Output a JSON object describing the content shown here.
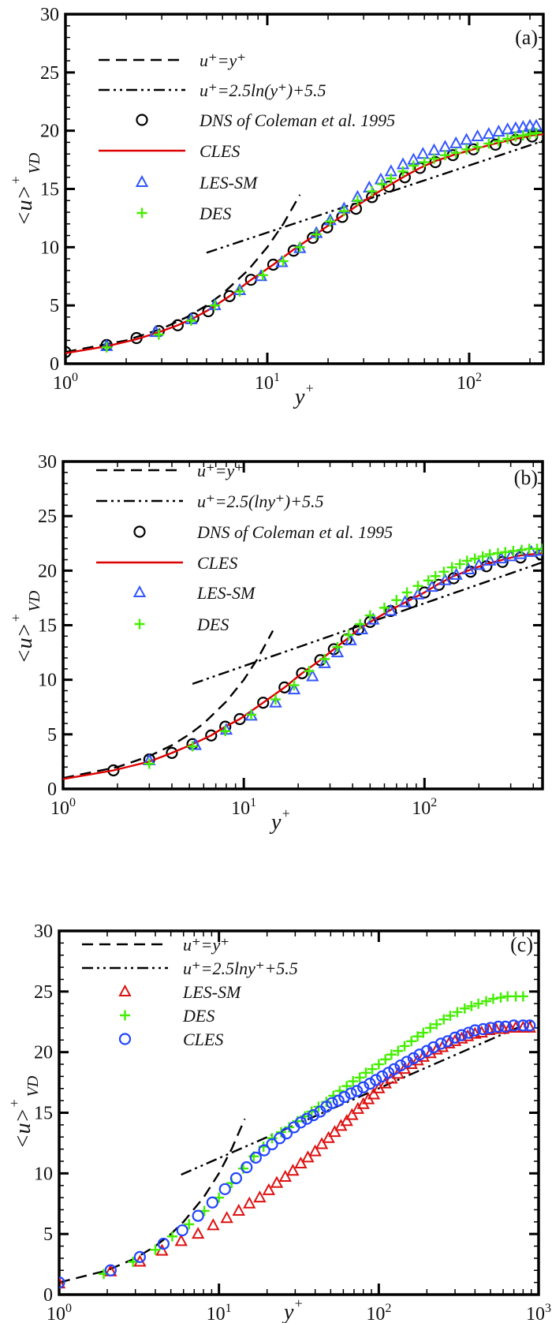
{
  "chart_data": [
    {
      "type": "line",
      "panel_label": "(a)",
      "xlabel": {
        "base": "y",
        "sup": "+"
      },
      "ylabel": {
        "base": "<u>",
        "sup": "+",
        "sub": "VD"
      },
      "xscale": "log",
      "xlim": [
        1,
        233
      ],
      "ylim": [
        0,
        30
      ],
      "x_tick_labels": [
        {
          "base": "10",
          "exp": "0",
          "value": 1
        },
        {
          "base": "10",
          "exp": "1",
          "value": 10
        },
        {
          "base": "10",
          "exp": "2",
          "value": 100
        }
      ],
      "y_ticks": [
        0,
        5,
        10,
        15,
        20,
        25,
        30
      ],
      "legend_position": "top-left",
      "series": [
        {
          "name": "u⁺=y⁺",
          "style": "dashed",
          "color": "#000000",
          "x": [
            1,
            2,
            3,
            4,
            5,
            6,
            8,
            10,
            12,
            14.5
          ],
          "y": [
            1,
            2,
            3,
            4,
            5,
            6,
            8,
            10,
            12,
            14.5
          ]
        },
        {
          "name": "u⁺=2.5ln(y⁺)+5.5",
          "style": "dashdot",
          "color": "#000000",
          "x": [
            5,
            233
          ],
          "y": [
            9.52,
            19.13
          ]
        },
        {
          "name": "DNS of Coleman et al. 1995",
          "style": "circle",
          "color": "#000000",
          "x": [
            1.0,
            1.6,
            2.25,
            2.9,
            3.6,
            4.3,
            5.1,
            6.5,
            8.3,
            10.7,
            13.5,
            16.8,
            19.8,
            23.5,
            27.5,
            33,
            40,
            48,
            57,
            68,
            83,
            105,
            135,
            170,
            205
          ],
          "y": [
            1.0,
            1.6,
            2.2,
            2.8,
            3.3,
            3.9,
            4.5,
            5.8,
            7.2,
            8.5,
            9.7,
            10.8,
            11.7,
            12.6,
            13.3,
            14.3,
            15.2,
            16.0,
            16.8,
            17.3,
            17.9,
            18.4,
            18.8,
            19.2,
            19.5
          ]
        },
        {
          "name": "CLES",
          "style": "solid",
          "color": "#dd0000",
          "x": [
            1.0,
            1.6,
            2.25,
            2.9,
            3.6,
            4.3,
            5.1,
            6.5,
            8.3,
            10.7,
            13.5,
            16.8,
            19.8,
            23.5,
            27.5,
            33,
            40,
            48,
            57,
            68,
            83,
            105,
            135,
            170,
            205,
            233
          ],
          "y": [
            0.9,
            1.5,
            2.1,
            2.7,
            3.3,
            3.9,
            4.6,
            5.8,
            7.2,
            8.5,
            9.8,
            10.9,
            11.8,
            12.7,
            13.5,
            14.4,
            15.3,
            16.1,
            16.8,
            17.4,
            17.9,
            18.4,
            18.9,
            19.3,
            19.6,
            19.7
          ]
        },
        {
          "name": "LES-SM",
          "style": "triangle",
          "color": "#3355ff",
          "x": [
            1.6,
            2.8,
            4.2,
            5.5,
            7.3,
            9.3,
            11.8,
            14.5,
            17.5,
            20.5,
            24,
            28,
            32,
            36.5,
            41,
            47,
            53,
            59,
            67,
            76,
            86,
            97,
            110,
            125,
            140,
            155,
            170,
            185,
            200,
            215
          ],
          "y": [
            1.5,
            2.7,
            3.8,
            5.0,
            6.3,
            7.5,
            8.7,
            9.9,
            11.2,
            12.3,
            13.3,
            14.3,
            15.1,
            15.8,
            16.5,
            17.1,
            17.5,
            18.0,
            18.3,
            18.6,
            18.9,
            19.2,
            19.5,
            19.7,
            19.9,
            20.1,
            20.2,
            20.3,
            20.4,
            20.4
          ]
        },
        {
          "name": "DES",
          "style": "plus",
          "color": "#44ee00",
          "x": [
            1.6,
            2.9,
            4.2,
            5.5,
            7.3,
            9.5,
            12,
            14.5,
            17.5,
            20.5,
            24,
            28,
            33,
            37,
            41,
            47,
            53,
            60,
            67,
            76,
            86,
            97,
            110,
            125,
            140,
            155,
            170,
            185,
            200,
            215
          ],
          "y": [
            1.4,
            2.5,
            3.7,
            5.0,
            6.2,
            7.6,
            8.8,
            10.0,
            11.1,
            12.2,
            13.1,
            14.0,
            14.8,
            15.4,
            15.9,
            16.5,
            17.0,
            17.3,
            17.6,
            17.9,
            18.1,
            18.4,
            18.6,
            18.9,
            19.1,
            19.3,
            19.5,
            19.6,
            19.7,
            19.8
          ]
        }
      ]
    },
    {
      "type": "line",
      "panel_label": "(b)",
      "xlabel": {
        "base": "y",
        "sup": "+"
      },
      "ylabel": {
        "base": "<u>",
        "sup": "+",
        "sub": "VD"
      },
      "xscale": "log",
      "xlim": [
        1,
        450
      ],
      "ylim": [
        0,
        30
      ],
      "x_tick_labels": [
        {
          "base": "10",
          "exp": "0",
          "value": 1
        },
        {
          "base": "10",
          "exp": "1",
          "value": 10
        },
        {
          "base": "10",
          "exp": "2",
          "value": 100
        }
      ],
      "y_ticks": [
        0,
        5,
        10,
        15,
        20,
        25,
        30
      ],
      "legend_position": "top-left",
      "series": [
        {
          "name": "u⁺=y⁺",
          "style": "dashed",
          "color": "#000000",
          "x": [
            1,
            2,
            3,
            4,
            5,
            6,
            8,
            10,
            12,
            14.5
          ],
          "y": [
            1,
            2,
            3,
            4,
            5,
            6,
            8,
            10,
            12,
            14.5
          ]
        },
        {
          "name": "u⁺=2.5(lny⁺)+5.5",
          "style": "dashdot",
          "color": "#000000",
          "x": [
            5.2,
            450
          ],
          "y": [
            9.62,
            20.77
          ]
        },
        {
          "name": "DNS of Coleman et al. 1995",
          "style": "circle",
          "color": "#000000",
          "x": [
            1.9,
            3,
            4,
            5.2,
            6.6,
            7.9,
            9.5,
            12.8,
            16.8,
            21,
            26.5,
            31.5,
            37,
            43,
            50,
            65,
            85,
            100,
            120,
            145,
            180,
            220,
            270,
            340,
            440
          ],
          "y": [
            1.7,
            2.7,
            3.3,
            4.1,
            4.9,
            5.7,
            6.4,
            7.9,
            9.3,
            10.6,
            11.8,
            12.8,
            13.7,
            14.6,
            15.3,
            16.3,
            17.1,
            18.0,
            18.7,
            19.3,
            19.9,
            20.4,
            20.8,
            21.2,
            21.5
          ]
        },
        {
          "name": "CLES",
          "style": "solid",
          "color": "#dd0000",
          "x": [
            1,
            1.9,
            3,
            4,
            5.2,
            6.6,
            7.9,
            9.5,
            12.8,
            16.8,
            21,
            26.5,
            31.5,
            37,
            43,
            50,
            65,
            85,
            100,
            120,
            145,
            180,
            220,
            270,
            340,
            450
          ],
          "y": [
            0.9,
            1.7,
            2.5,
            3.3,
            4.1,
            4.9,
            5.7,
            6.4,
            7.9,
            9.3,
            10.6,
            11.8,
            12.8,
            13.7,
            14.6,
            15.3,
            16.4,
            17.4,
            18.0,
            18.8,
            19.5,
            20.1,
            20.6,
            21.0,
            21.4,
            21.6
          ]
        },
        {
          "name": "LES-SM",
          "style": "triangle",
          "color": "#3355ff",
          "x": [
            3,
            5.4,
            8,
            11,
            15,
            19,
            24,
            28,
            33,
            39,
            45,
            52,
            65,
            78,
            92,
            110,
            130,
            150,
            175,
            200,
            230,
            265,
            300,
            340,
            390,
            450
          ],
          "y": [
            2.6,
            4.0,
            5.4,
            6.7,
            7.9,
            9.1,
            10.3,
            11.5,
            12.5,
            13.6,
            14.6,
            15.5,
            16.3,
            17.1,
            17.8,
            18.5,
            19.1,
            19.6,
            20.1,
            20.5,
            20.9,
            21.1,
            21.3,
            21.5,
            21.7,
            21.8
          ]
        },
        {
          "name": "DES",
          "style": "plus",
          "color": "#44ee00",
          "x": [
            3,
            5.2,
            7.9,
            11,
            15,
            19,
            23,
            28,
            33,
            38,
            44,
            50,
            60,
            70,
            80,
            92,
            105,
            115,
            128,
            142,
            157,
            172,
            190,
            210,
            230,
            255,
            280,
            310,
            345,
            380,
            420,
            450
          ],
          "y": [
            2.3,
            3.9,
            5.3,
            6.8,
            8.2,
            9.5,
            10.8,
            11.9,
            13.0,
            14.1,
            15.1,
            15.9,
            16.6,
            17.3,
            18.0,
            18.6,
            19.1,
            19.5,
            19.9,
            20.3,
            20.6,
            20.9,
            21.1,
            21.3,
            21.5,
            21.6,
            21.7,
            21.8,
            21.9,
            22.0,
            22.0,
            22.0
          ]
        }
      ]
    },
    {
      "type": "line",
      "panel_label": "(c)",
      "xlabel": {
        "base": "y",
        "sup": "+"
      },
      "ylabel": {
        "base": "<u>",
        "sup": "+",
        "sub": "VD"
      },
      "xscale": "log",
      "xlim": [
        1,
        1000
      ],
      "ylim": [
        0,
        30
      ],
      "x_tick_labels": [
        {
          "base": "10",
          "exp": "0",
          "value": 1
        },
        {
          "base": "10",
          "exp": "1",
          "value": 10
        },
        {
          "base": "10",
          "exp": "2",
          "value": 100
        },
        {
          "base": "10",
          "exp": "3",
          "value": 1000
        }
      ],
      "y_ticks": [
        0,
        5,
        10,
        15,
        20,
        25,
        30
      ],
      "legend_position": "top-left",
      "series": [
        {
          "name": "u⁺=y⁺",
          "style": "dashed",
          "color": "#000000",
          "x": [
            1,
            2,
            3,
            4,
            5,
            6,
            8,
            10,
            12,
            14.5
          ],
          "y": [
            1,
            2,
            3,
            4,
            5,
            6,
            8,
            10,
            12,
            14.5
          ]
        },
        {
          "name": "u⁺=2.5lny⁺+5.5",
          "style": "dashdot",
          "color": "#000000",
          "x": [
            5.8,
            900
          ],
          "y": [
            9.89,
            22.51
          ]
        },
        {
          "name": "LES-SM",
          "style": "triangle",
          "color": "#dd1111",
          "x": [
            1,
            2.1,
            3.2,
            4.4,
            5.8,
            7.4,
            9.2,
            11.2,
            13.3,
            15.5,
            18,
            20.5,
            23,
            26,
            29,
            32.5,
            36,
            40,
            44,
            48.5,
            53,
            58,
            63,
            68,
            74,
            80,
            86,
            93,
            100,
            110,
            120,
            132,
            145,
            160,
            175,
            190,
            210,
            230,
            250,
            275,
            300,
            330,
            360,
            400,
            440,
            490,
            540,
            600,
            660,
            720,
            800,
            880
          ],
          "y": [
            0.9,
            1.9,
            2.7,
            3.6,
            4.4,
            5.0,
            5.7,
            6.3,
            6.9,
            7.5,
            8.0,
            8.6,
            9.2,
            9.7,
            10.2,
            10.8,
            11.3,
            11.8,
            12.4,
            12.9,
            13.4,
            13.9,
            14.3,
            14.8,
            15.3,
            15.7,
            16.1,
            16.5,
            17.0,
            17.4,
            17.8,
            18.2,
            18.6,
            19.0,
            19.3,
            19.6,
            19.9,
            20.2,
            20.4,
            20.7,
            20.9,
            21.1,
            21.3,
            21.5,
            21.6,
            21.8,
            21.9,
            21.9,
            22.0,
            22.0,
            22.0,
            22.0
          ]
        },
        {
          "name": "DES",
          "style": "plus",
          "color": "#44ee00",
          "x": [
            1.9,
            2.9,
            4.0,
            5.1,
            6.5,
            8.1,
            10,
            12,
            14.2,
            16.5,
            19,
            21.5,
            24.5,
            27.5,
            31,
            34.5,
            38,
            42,
            47,
            52,
            57,
            63,
            69,
            76,
            83,
            91,
            100,
            110,
            120,
            132,
            145,
            160,
            175,
            190,
            210,
            230,
            255,
            280,
            310,
            345,
            380,
            420,
            470,
            520,
            580,
            640,
            720,
            800
          ],
          "y": [
            1.7,
            2.7,
            3.7,
            4.8,
            5.8,
            6.9,
            8.0,
            9.2,
            10.4,
            11.4,
            12.2,
            12.9,
            13.4,
            13.8,
            14.3,
            14.7,
            15.1,
            15.5,
            15.9,
            16.4,
            16.8,
            17.2,
            17.6,
            17.9,
            18.3,
            18.6,
            19.0,
            19.4,
            19.8,
            20.1,
            20.5,
            20.9,
            21.3,
            21.6,
            22.0,
            22.3,
            22.7,
            23.0,
            23.3,
            23.6,
            23.8,
            24.0,
            24.2,
            24.4,
            24.5,
            24.6,
            24.6,
            24.6
          ]
        },
        {
          "name": "CLES",
          "style": "circle",
          "color": "#2244ff",
          "x": [
            1,
            2.1,
            3.2,
            4.5,
            5.9,
            7.4,
            9.1,
            10.9,
            12.8,
            14.9,
            17,
            19.2,
            21.5,
            24,
            26.5,
            29.5,
            32.5,
            35.5,
            39,
            43,
            47,
            51,
            56,
            61,
            67,
            73,
            80,
            88,
            96,
            105,
            115,
            125,
            137,
            150,
            165,
            180,
            200,
            220,
            245,
            270,
            300,
            330,
            365,
            400,
            450,
            500,
            560,
            620,
            700,
            800,
            880
          ],
          "y": [
            1.0,
            2.0,
            3.1,
            4.2,
            5.3,
            6.5,
            7.6,
            8.7,
            9.6,
            10.5,
            11.3,
            11.9,
            12.4,
            12.9,
            13.3,
            13.8,
            14.2,
            14.5,
            14.8,
            15.1,
            15.5,
            15.8,
            16.0,
            16.3,
            16.6,
            16.8,
            17.1,
            17.4,
            17.7,
            18.0,
            18.3,
            18.6,
            18.9,
            19.2,
            19.5,
            19.8,
            20.1,
            20.4,
            20.7,
            20.9,
            21.2,
            21.4,
            21.6,
            21.8,
            21.9,
            22.0,
            22.1,
            22.1,
            22.2,
            22.2,
            22.2
          ]
        }
      ]
    }
  ]
}
